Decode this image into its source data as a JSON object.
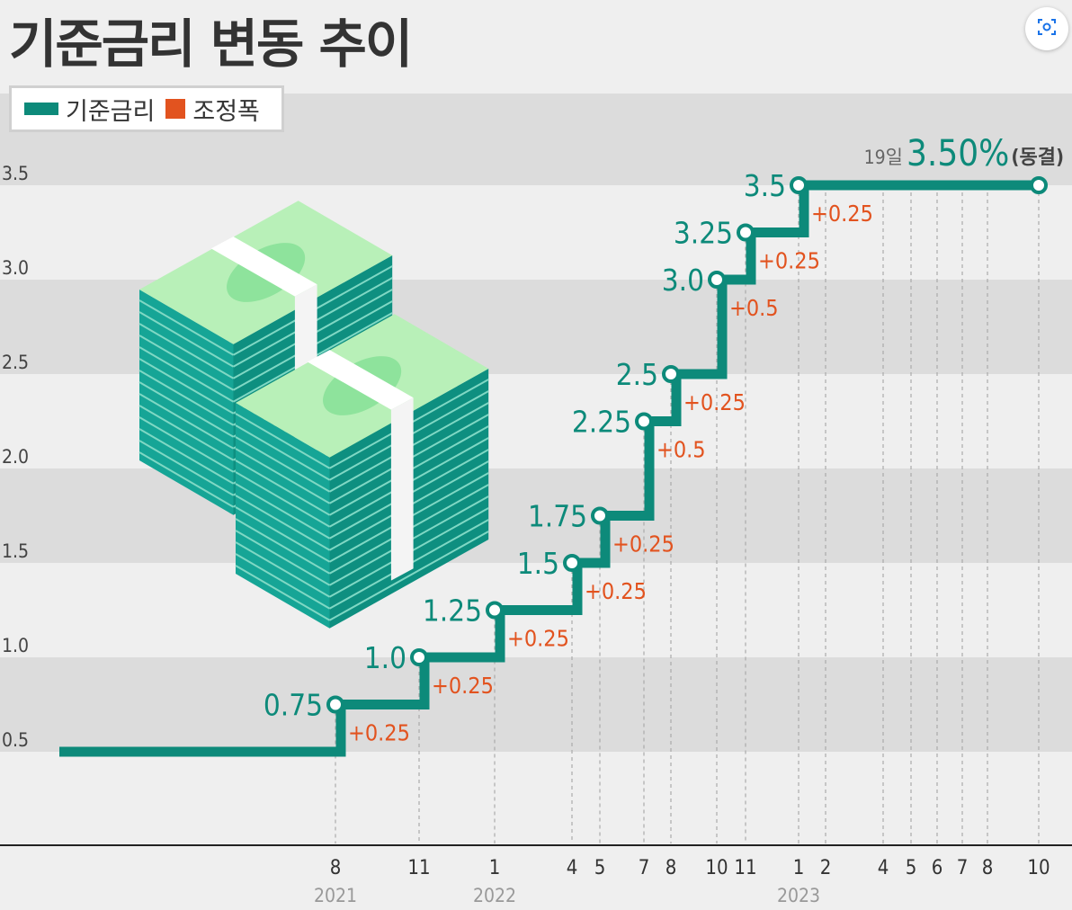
{
  "title": "기준금리 변동 추이",
  "legend": {
    "rate_label": "기준금리",
    "adjustment_label": "조정폭"
  },
  "annotation": {
    "day": "19일",
    "value": "3.50%",
    "note": "(동결)"
  },
  "colors": {
    "rate_line": "#0d8a7a",
    "adjustment_text": "#e2531f",
    "band": "#dcdcdc",
    "background": "#efefef"
  },
  "expand_icon": "scan-expand-icon",
  "illustration": "money-stacks",
  "chart_data": {
    "type": "line",
    "step": true,
    "title": "기준금리 변동 추이",
    "ylim": [
      0.5,
      3.5
    ],
    "y_ticks": [
      "0.5",
      "1.0",
      "1.5",
      "2.0",
      "2.5",
      "3.0",
      "3.5"
    ],
    "x_ticks": [
      {
        "label": "8",
        "year": "2021"
      },
      {
        "label": "11"
      },
      {
        "label": "1",
        "year": "2022"
      },
      {
        "label": "4"
      },
      {
        "label": "5"
      },
      {
        "label": "7"
      },
      {
        "label": "8"
      },
      {
        "label": "10"
      },
      {
        "label": "11"
      },
      {
        "label": "1",
        "year": "2023"
      },
      {
        "label": "2"
      },
      {
        "label": "4"
      },
      {
        "label": "5"
      },
      {
        "label": "6"
      },
      {
        "label": "7"
      },
      {
        "label": "8"
      },
      {
        "label": "10"
      }
    ],
    "series": [
      {
        "name": "기준금리",
        "start_value": 0.5,
        "points": [
          {
            "x": "2021-08",
            "value": 0.75,
            "label": "0.75",
            "change": "+0.25"
          },
          {
            "x": "2021-11",
            "value": 1.0,
            "label": "1.0",
            "change": "+0.25"
          },
          {
            "x": "2022-01",
            "value": 1.25,
            "label": "1.25",
            "change": "+0.25"
          },
          {
            "x": "2022-04",
            "value": 1.5,
            "label": "1.5",
            "change": "+0.25"
          },
          {
            "x": "2022-05",
            "value": 1.75,
            "label": "1.75",
            "change": "+0.25"
          },
          {
            "x": "2022-07",
            "value": 2.25,
            "label": "2.25",
            "change": "+0.5"
          },
          {
            "x": "2022-08",
            "value": 2.5,
            "label": "2.5",
            "change": "+0.25"
          },
          {
            "x": "2022-10",
            "value": 3.0,
            "label": "3.0",
            "change": "+0.5"
          },
          {
            "x": "2022-11",
            "value": 3.25,
            "label": "3.25",
            "change": "+0.25"
          },
          {
            "x": "2023-01",
            "value": 3.5,
            "label": "3.5",
            "change": "+0.25"
          },
          {
            "x": "2023-10",
            "value": 3.5,
            "label": ""
          }
        ]
      }
    ]
  }
}
